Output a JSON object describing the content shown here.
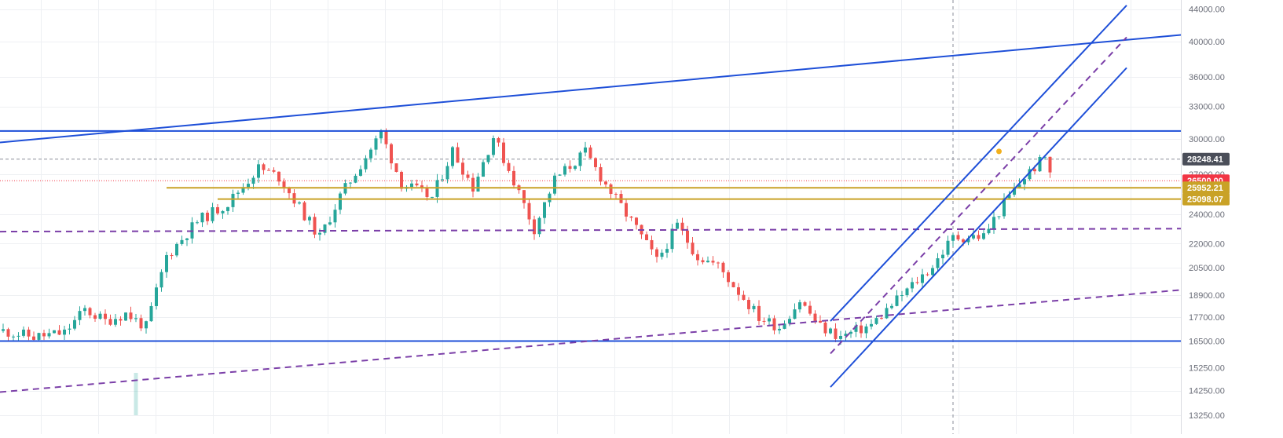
{
  "chart_data": {
    "type": "candlestick",
    "title": "",
    "xlabel": "",
    "ylabel": "",
    "price_axis": {
      "position": "right",
      "scale": "log",
      "ylim": [
        13250,
        45000
      ],
      "ticks": [
        {
          "value": 44000,
          "label": "44000.00"
        },
        {
          "value": 40000,
          "label": "40000.00"
        },
        {
          "value": 36000,
          "label": "36000.00"
        },
        {
          "value": 33000,
          "label": "33000.00"
        },
        {
          "value": 30000,
          "label": "30000.00"
        },
        {
          "value": 27000,
          "label": "27000.00"
        },
        {
          "value": 24000,
          "label": "24000.00"
        },
        {
          "value": 22000,
          "label": "22000.00"
        },
        {
          "value": 20500,
          "label": "20500.00"
        },
        {
          "value": 18900,
          "label": "18900.00"
        },
        {
          "value": 17700,
          "label": "17700.00"
        },
        {
          "value": 16500,
          "label": "16500.00"
        },
        {
          "value": 15250,
          "label": "15250.00"
        },
        {
          "value": 14250,
          "label": "14250.00"
        },
        {
          "value": 13250,
          "label": "13250.00"
        }
      ]
    },
    "price_labels": [
      {
        "value": 28248.41,
        "label": "28248.41",
        "color": "#4a4e59"
      },
      {
        "value": 26500,
        "label": "26500.00",
        "color": "#f23645"
      },
      {
        "value": 25952.21,
        "label": "25952.21",
        "color": "#c9a227"
      },
      {
        "value": 25098.07,
        "label": "25098.07",
        "color": "#c9a227"
      }
    ],
    "grid": true,
    "colors": {
      "up": "#26a69a",
      "down": "#ef5350",
      "trendline": "#1e4fd8",
      "dashed_trend": "#7b3fa8",
      "horizontal_level": "#c9a227",
      "current_price": "#f23645",
      "crosshair": "#8a8e99"
    },
    "candle_count": 232,
    "candle_waypoints": [
      [
        0,
        17000
      ],
      [
        6,
        16700
      ],
      [
        12,
        16900
      ],
      [
        16,
        18100
      ],
      [
        20,
        17500
      ],
      [
        24,
        17900
      ],
      [
        28,
        17200
      ],
      [
        32,
        21200
      ],
      [
        38,
        23500
      ],
      [
        44,
        24800
      ],
      [
        50,
        27500
      ],
      [
        54,
        26800
      ],
      [
        58,
        24500
      ],
      [
        62,
        22400
      ],
      [
        66,
        25300
      ],
      [
        70,
        27800
      ],
      [
        74,
        30500
      ],
      [
        78,
        26300
      ],
      [
        84,
        25200
      ],
      [
        88,
        29000
      ],
      [
        92,
        26000
      ],
      [
        96,
        30200
      ],
      [
        100,
        26500
      ],
      [
        104,
        23000
      ],
      [
        108,
        26600
      ],
      [
        114,
        28800
      ],
      [
        118,
        26200
      ],
      [
        124,
        23000
      ],
      [
        128,
        20900
      ],
      [
        132,
        23200
      ],
      [
        136,
        21200
      ],
      [
        140,
        20600
      ],
      [
        144,
        19100
      ],
      [
        148,
        17700
      ],
      [
        152,
        17200
      ],
      [
        156,
        18600
      ],
      [
        160,
        17200
      ],
      [
        164,
        16700
      ],
      [
        170,
        17300
      ],
      [
        176,
        18900
      ],
      [
        182,
        20600
      ],
      [
        186,
        22400
      ],
      [
        192,
        22500
      ],
      [
        196,
        24800
      ],
      [
        200,
        26800
      ],
      [
        204,
        28400
      ],
      [
        205,
        27300
      ]
    ],
    "volume_bar": {
      "candle_index": 26,
      "value_fraction": 0.9
    },
    "annotations": [
      {
        "kind": "trendline",
        "name": "upper-rising-trendline",
        "points": [
          [
            0,
            29700
          ],
          [
            231,
            40800
          ]
        ]
      },
      {
        "kind": "hline",
        "name": "resistance-line",
        "value": 30700
      },
      {
        "kind": "hline",
        "name": "support-line",
        "value": 16500
      },
      {
        "kind": "hline-dashed",
        "name": "red-price-line",
        "value": 26500
      },
      {
        "kind": "hline-dashed",
        "name": "grey-price-line",
        "value": 28248.41
      },
      {
        "kind": "ray",
        "name": "level-25952",
        "from_index": 32,
        "value": 25952.21
      },
      {
        "kind": "ray",
        "name": "level-25098",
        "from_index": 42,
        "value": 25098.07
      },
      {
        "kind": "dashed-trendline",
        "name": "purple-mid-horizontal",
        "points": [
          [
            0,
            22800
          ],
          [
            231,
            23000
          ]
        ]
      },
      {
        "kind": "dashed-trendline",
        "name": "purple-long-diagonal",
        "points": [
          [
            0,
            14200
          ],
          [
            231,
            19200
          ]
        ]
      },
      {
        "kind": "channel-line",
        "name": "channel-upper",
        "points": [
          [
            162,
            17500
          ],
          [
            220,
            44500
          ]
        ]
      },
      {
        "kind": "channel-line",
        "name": "channel-lower",
        "points": [
          [
            162,
            14400
          ],
          [
            220,
            37000
          ]
        ]
      },
      {
        "kind": "channel-median",
        "name": "channel-median",
        "points": [
          [
            162,
            15900
          ],
          [
            220,
            40500
          ]
        ]
      },
      {
        "kind": "vline-dashed",
        "name": "crosshair-vertical",
        "candle_index": 186
      }
    ],
    "marker": {
      "candle_index": 195,
      "value": 28900,
      "color": "#f2b01e"
    }
  }
}
